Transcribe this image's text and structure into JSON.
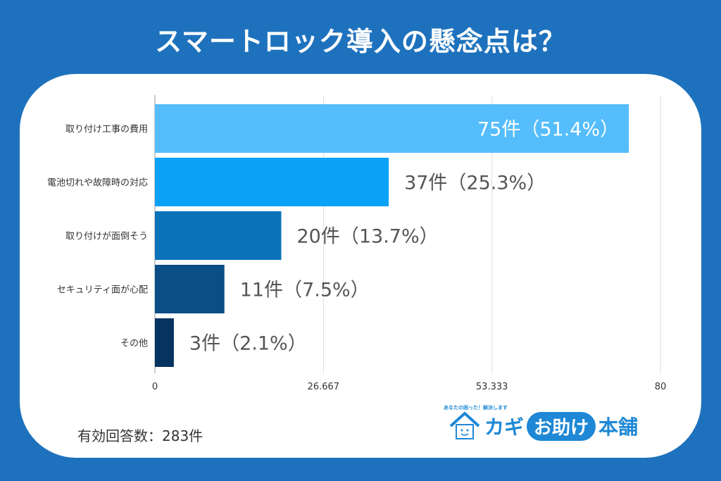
{
  "title": "スマートロック導入の懸念点は？",
  "footer": {
    "respondents": "有効回答数：283件"
  },
  "logo": {
    "part1": "カギ",
    "part2": "お助け",
    "part3": "本舗",
    "tagline": "あなたの困った！解決します"
  },
  "colors": {
    "background": "#1e72bd",
    "bars": [
      "#55bdfc",
      "#0aa2f7",
      "#0a72b9",
      "#0b4d85",
      "#06335f"
    ],
    "label_inside": "#ffffff",
    "label_outside": "#555555"
  },
  "chart_data": {
    "type": "bar",
    "orientation": "horizontal",
    "categories": [
      "取り付け工事の費用",
      "電池切れや故障時の対応",
      "取り付けが面倒そう",
      "セキュリティ面が心配",
      "その他"
    ],
    "values": [
      75,
      37,
      20,
      11,
      3
    ],
    "data_labels": [
      "75件（51.4%）",
      "37件（25.3%）",
      "20件（13.7%）",
      "11件（7.5%）",
      "3件（2.1%）"
    ],
    "xlim": [
      0,
      80
    ],
    "x_ticks": [
      "0",
      "26.667",
      "53.333",
      "80"
    ],
    "grid": true,
    "legend": "none"
  }
}
